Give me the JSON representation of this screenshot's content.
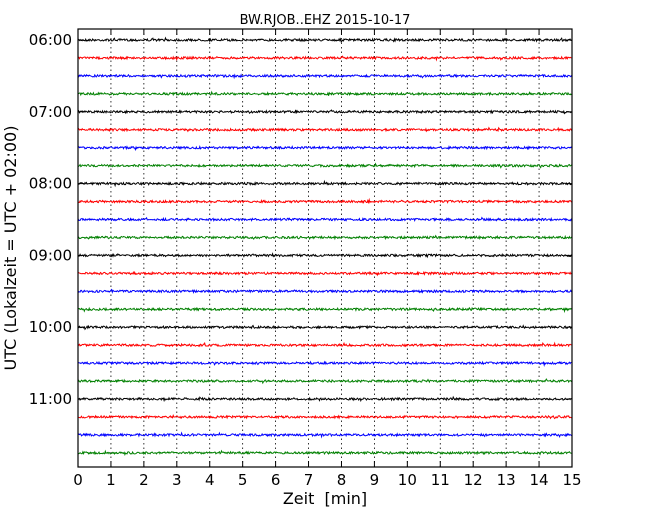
{
  "chart_data": {
    "type": "line",
    "title": "BW.RJOB..EHZ 2015-10-17",
    "xlabel": "Zeit  [min]",
    "ylabel": "UTC (Lokalzeit = UTC + 02:00)",
    "xlim": [
      0,
      15
    ],
    "x_ticks": [
      "0",
      "1",
      "2",
      "3",
      "4",
      "5",
      "6",
      "7",
      "8",
      "9",
      "10",
      "11",
      "12",
      "13",
      "14",
      "15"
    ],
    "y_tick_labels": [
      "06:00",
      "07:00",
      "08:00",
      "09:00",
      "10:00",
      "11:00"
    ],
    "trace_interval_min": 15,
    "trace_start": "06:00",
    "trace_count": 24,
    "trace_colors": [
      "#000000",
      "#ff0000",
      "#0000ff",
      "#008000"
    ],
    "grid_x": true
  }
}
